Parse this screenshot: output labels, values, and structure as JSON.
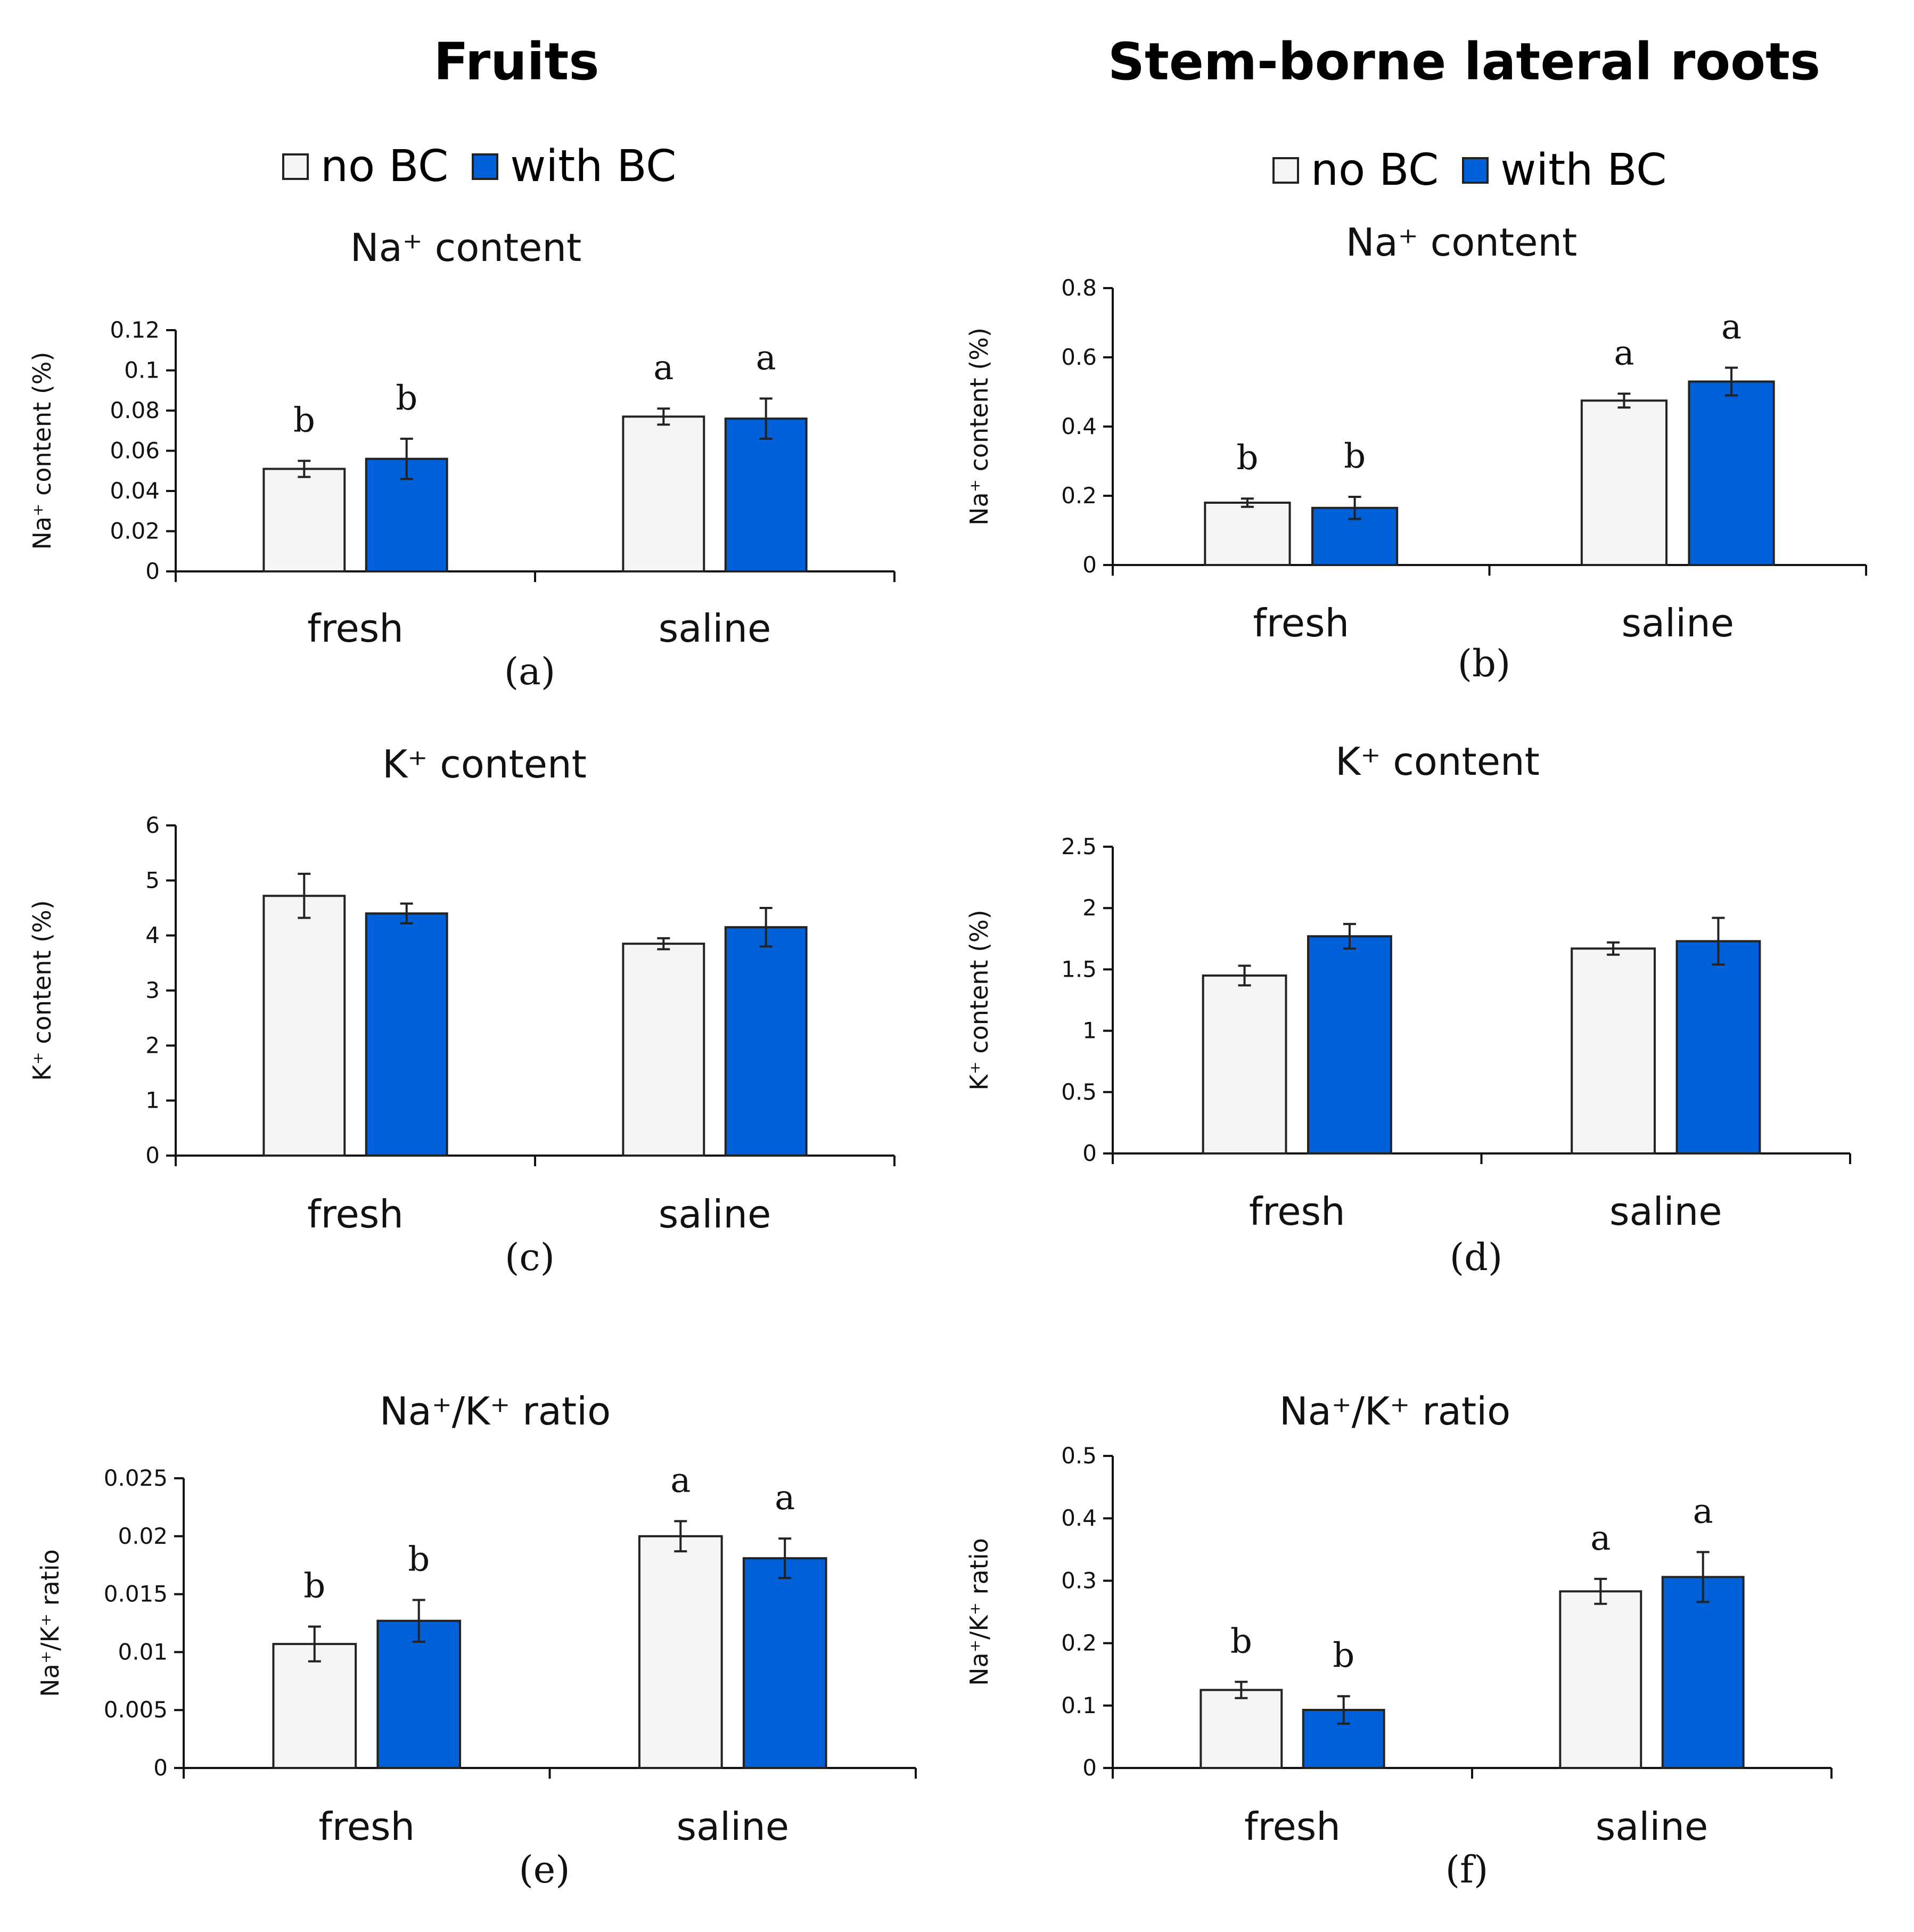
{
  "columns": {
    "left_title": "Fruits",
    "right_title": "Stem-borne lateral roots"
  },
  "legend": {
    "no_bc": "no BC",
    "with_bc": "with BC"
  },
  "colors": {
    "no_bc": "#f5f5f5",
    "with_bc": "#0060d8",
    "outline": "#222222",
    "axis": "#111111"
  },
  "chart_data": [
    {
      "id": "a",
      "type": "bar",
      "panel_label": "(a)",
      "title": "Na⁺ content",
      "ylabel": "Na⁺ content (%)",
      "ylim": [
        0,
        0.12
      ],
      "yticks": [
        "0",
        "0.02",
        "0.04",
        "0.06",
        "0.08",
        "0.1",
        "0.12"
      ],
      "ytick_values": [
        0,
        0.02,
        0.04,
        0.06,
        0.08,
        0.1,
        0.12
      ],
      "categories": [
        "fresh",
        "saline"
      ],
      "series": [
        {
          "name": "no BC",
          "values": [
            0.051,
            0.077
          ],
          "errors": [
            0.004,
            0.004
          ],
          "letters": [
            "b",
            "a"
          ]
        },
        {
          "name": "with BC",
          "values": [
            0.056,
            0.076
          ],
          "errors": [
            0.01,
            0.01
          ],
          "letters": [
            "b",
            "a"
          ]
        }
      ]
    },
    {
      "id": "b",
      "type": "bar",
      "panel_label": "(b)",
      "title": "Na⁺ content",
      "ylabel": "Na⁺ content (%)",
      "ylim": [
        0,
        0.8
      ],
      "yticks": [
        "0",
        "0.2",
        "0.4",
        "0.6",
        "0.8"
      ],
      "ytick_values": [
        0,
        0.2,
        0.4,
        0.6,
        0.8
      ],
      "categories": [
        "fresh",
        "saline"
      ],
      "series": [
        {
          "name": "no BC",
          "values": [
            0.18,
            0.475
          ],
          "errors": [
            0.012,
            0.02
          ],
          "letters": [
            "b",
            "a"
          ]
        },
        {
          "name": "with BC",
          "values": [
            0.165,
            0.53
          ],
          "errors": [
            0.032,
            0.04
          ],
          "letters": [
            "b",
            "a"
          ]
        }
      ]
    },
    {
      "id": "c",
      "type": "bar",
      "panel_label": "(c)",
      "title": "K⁺ content",
      "ylabel": "K⁺ content (%)",
      "ylim": [
        0,
        6
      ],
      "yticks": [
        "0",
        "1",
        "2",
        "3",
        "4",
        "5",
        "6"
      ],
      "ytick_values": [
        0,
        1,
        2,
        3,
        4,
        5,
        6
      ],
      "categories": [
        "fresh",
        "saline"
      ],
      "series": [
        {
          "name": "no BC",
          "values": [
            4.72,
            3.85
          ],
          "errors": [
            0.4,
            0.1
          ],
          "letters": [
            "",
            ""
          ]
        },
        {
          "name": "with BC",
          "values": [
            4.4,
            4.15
          ],
          "errors": [
            0.18,
            0.35
          ],
          "letters": [
            "",
            ""
          ]
        }
      ]
    },
    {
      "id": "d",
      "type": "bar",
      "panel_label": "(d)",
      "title": "K⁺ content",
      "ylabel": "K⁺ content (%)",
      "ylim": [
        0,
        2.5
      ],
      "yticks": [
        "0",
        "0.5",
        "1",
        "1.5",
        "2",
        "2.5"
      ],
      "ytick_values": [
        0,
        0.5,
        1,
        1.5,
        2,
        2.5
      ],
      "categories": [
        "fresh",
        "saline"
      ],
      "series": [
        {
          "name": "no BC",
          "values": [
            1.45,
            1.67
          ],
          "errors": [
            0.08,
            0.05
          ],
          "letters": [
            "",
            ""
          ]
        },
        {
          "name": "with BC",
          "values": [
            1.77,
            1.73
          ],
          "errors": [
            0.1,
            0.19
          ],
          "letters": [
            "",
            ""
          ]
        }
      ]
    },
    {
      "id": "e",
      "type": "bar",
      "panel_label": "(e)",
      "title": "Na⁺/K⁺ ratio",
      "ylabel": "Na⁺/K⁺ ratio",
      "ylim": [
        0,
        0.025
      ],
      "yticks": [
        "0",
        "0.005",
        "0.01",
        "0.015",
        "0.02",
        "0.025"
      ],
      "ytick_values": [
        0,
        0.005,
        0.01,
        0.015,
        0.02,
        0.025
      ],
      "categories": [
        "fresh",
        "saline"
      ],
      "series": [
        {
          "name": "no BC",
          "values": [
            0.0107,
            0.02
          ],
          "errors": [
            0.0015,
            0.0013
          ],
          "letters": [
            "b",
            "a"
          ]
        },
        {
          "name": "with BC",
          "values": [
            0.0127,
            0.0181
          ],
          "errors": [
            0.0018,
            0.0017
          ],
          "letters": [
            "b",
            "a"
          ]
        }
      ]
    },
    {
      "id": "f",
      "type": "bar",
      "panel_label": "(f)",
      "title": "Na⁺/K⁺ ratio",
      "ylabel": "Na⁺/K⁺ ratio",
      "ylim": [
        0,
        0.5
      ],
      "yticks": [
        "0",
        "0.1",
        "0.2",
        "0.3",
        "0.4",
        "0.5"
      ],
      "ytick_values": [
        0,
        0.1,
        0.2,
        0.3,
        0.4,
        0.5
      ],
      "categories": [
        "fresh",
        "saline"
      ],
      "series": [
        {
          "name": "no BC",
          "values": [
            0.125,
            0.283
          ],
          "errors": [
            0.013,
            0.02
          ],
          "letters": [
            "b",
            "a"
          ]
        },
        {
          "name": "with BC",
          "values": [
            0.093,
            0.306
          ],
          "errors": [
            0.022,
            0.04
          ],
          "letters": [
            "b",
            "a"
          ]
        }
      ]
    }
  ]
}
